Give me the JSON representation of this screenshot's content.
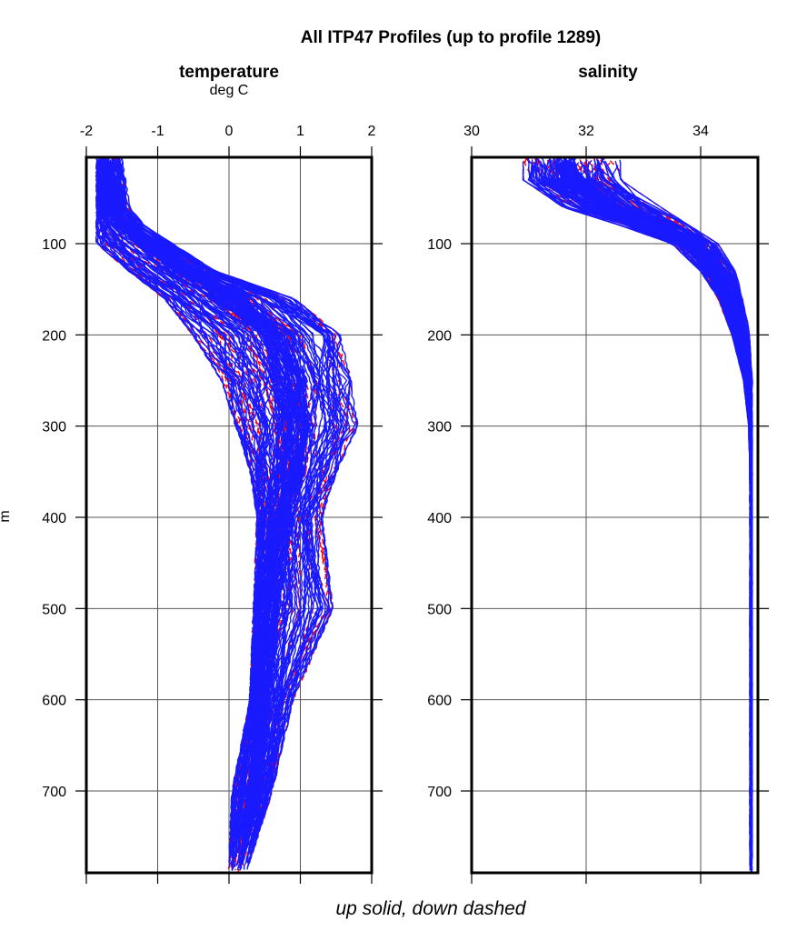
{
  "title": "All ITP47 Profiles (up to profile 1289)",
  "caption": "up solid, down dashed",
  "y_unit_label": "m",
  "colors": {
    "up": "#1a1aff",
    "down": "#ff0000",
    "frame": "#000000",
    "grid": "#555555"
  },
  "chart_data": [
    {
      "type": "line",
      "title": "temperature",
      "xlabel": "deg C",
      "xlim": [
        -2,
        2
      ],
      "ylim": [
        790,
        5
      ],
      "xticks": [
        "-2",
        "-1",
        "0",
        "1",
        "2"
      ],
      "yticks": [
        "100",
        "200",
        "300",
        "400",
        "500",
        "600",
        "700"
      ],
      "grid": true,
      "depths": [
        5,
        30,
        60,
        80,
        100,
        130,
        160,
        200,
        250,
        300,
        350,
        400,
        500,
        600,
        700,
        785
      ],
      "series": [
        {
          "role": "mean",
          "values": [
            -1.75,
            -1.7,
            -1.65,
            -1.5,
            -1.1,
            -0.6,
            0.0,
            0.65,
            0.85,
            0.9,
            0.85,
            0.7,
            0.55,
            0.45,
            0.35,
            0.15
          ]
        },
        {
          "role": "warm-envelope",
          "values": [
            -1.5,
            -1.45,
            -1.4,
            -1.2,
            -0.8,
            -0.2,
            0.9,
            1.55,
            1.7,
            1.8,
            1.5,
            1.3,
            1.45,
            0.9,
            0.6,
            0.25
          ]
        },
        {
          "role": "cold-envelope",
          "values": [
            -1.85,
            -1.85,
            -1.85,
            -1.85,
            -1.85,
            -1.4,
            -0.9,
            -0.5,
            -0.1,
            0.1,
            0.3,
            0.4,
            0.35,
            0.3,
            0.05,
            0.0
          ]
        }
      ]
    },
    {
      "type": "line",
      "title": "salinity",
      "xlabel": "",
      "xlim": [
        30,
        35
      ],
      "ylim": [
        790,
        5
      ],
      "xticks": [
        "30",
        "32",
        "34"
      ],
      "yticks": [
        "100",
        "200",
        "300",
        "400",
        "500",
        "600",
        "700"
      ],
      "grid": true,
      "depths": [
        5,
        30,
        60,
        80,
        100,
        130,
        160,
        200,
        250,
        300,
        350,
        400,
        500,
        600,
        700,
        785
      ],
      "series": [
        {
          "role": "mean",
          "values": [
            31.6,
            31.7,
            32.4,
            33.2,
            33.9,
            34.3,
            34.55,
            34.7,
            34.82,
            34.87,
            34.88,
            34.88,
            34.88,
            34.88,
            34.88,
            34.88
          ]
        },
        {
          "role": "high-envelope",
          "values": [
            32.6,
            32.6,
            33.3,
            33.8,
            34.3,
            34.6,
            34.75,
            34.85,
            34.9,
            34.9,
            34.9,
            34.9,
            34.9,
            34.9,
            34.9,
            34.9
          ]
        },
        {
          "role": "low-envelope",
          "values": [
            30.9,
            30.9,
            31.6,
            32.6,
            33.5,
            34.0,
            34.3,
            34.55,
            34.75,
            34.84,
            34.86,
            34.86,
            34.86,
            34.86,
            34.86,
            34.86
          ]
        }
      ]
    }
  ]
}
